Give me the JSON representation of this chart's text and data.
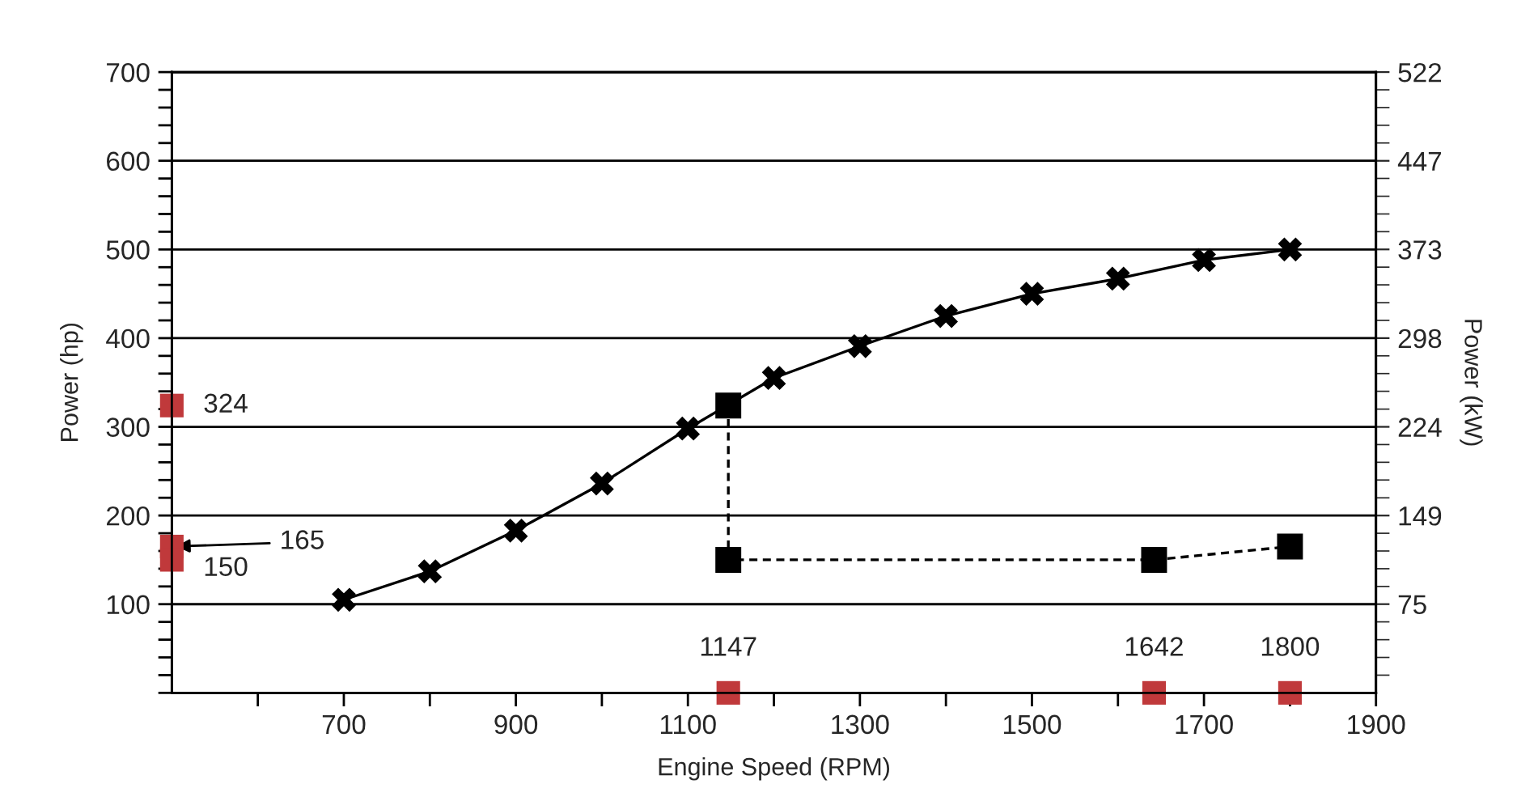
{
  "chart_data": {
    "type": "line",
    "xlabel": "Engine Speed (RPM)",
    "ylabel": "Power (hp)",
    "y2label": "Power (kW)",
    "xlim": [
      500,
      1900
    ],
    "xticks": [
      {
        "value": 600,
        "label": null
      },
      700,
      {
        "value": 800,
        "label": null
      },
      900,
      {
        "value": 1000,
        "label": null
      },
      1100,
      {
        "value": 1200,
        "label": null
      },
      1300,
      {
        "value": 1400,
        "label": null
      },
      1500,
      {
        "value": 1600,
        "label": null
      },
      1700,
      {
        "value": 1800,
        "label": null
      },
      1900
    ],
    "ylim": [
      0,
      700
    ],
    "yticks": [
      {
        "value": 0,
        "label": null
      },
      {
        "value": 20,
        "label": null
      },
      {
        "value": 40,
        "label": null
      },
      {
        "value": 60,
        "label": null
      },
      {
        "value": 80,
        "label": null
      },
      100,
      {
        "value": 120,
        "label": null
      },
      {
        "value": 140,
        "label": null
      },
      {
        "value": 160,
        "label": null
      },
      {
        "value": 180,
        "label": null
      },
      200,
      {
        "value": 220,
        "label": null
      },
      {
        "value": 240,
        "label": null
      },
      {
        "value": 260,
        "label": null
      },
      {
        "value": 280,
        "label": null
      },
      300,
      {
        "value": 320,
        "label": null
      },
      {
        "value": 340,
        "label": null
      },
      {
        "value": 360,
        "label": null
      },
      {
        "value": 380,
        "label": null
      },
      400,
      {
        "value": 420,
        "label": null
      },
      {
        "value": 440,
        "label": null
      },
      {
        "value": 460,
        "label": null
      },
      {
        "value": 480,
        "label": null
      },
      500,
      {
        "value": 520,
        "label": null
      },
      {
        "value": 540,
        "label": null
      },
      {
        "value": 560,
        "label": null
      },
      {
        "value": 580,
        "label": null
      },
      600,
      {
        "value": 620,
        "label": null
      },
      {
        "value": 640,
        "label": null
      },
      {
        "value": 660,
        "label": null
      },
      {
        "value": 680,
        "label": null
      },
      700
    ],
    "y2lim": [
      0,
      522
    ],
    "y2ticks": [
      {
        "value": 14.9,
        "label": null
      },
      {
        "value": 29.8,
        "label": null
      },
      {
        "value": 44.7,
        "label": null
      },
      {
        "value": 59.7,
        "label": null
      },
      {
        "value": 74.6,
        "label": "75"
      },
      {
        "value": 89.5,
        "label": null
      },
      {
        "value": 104.4,
        "label": null
      },
      {
        "value": 119.3,
        "label": null
      },
      {
        "value": 134.2,
        "label": null
      },
      {
        "value": 149.1,
        "label": "149"
      },
      {
        "value": 164.0,
        "label": null
      },
      {
        "value": 179.0,
        "label": null
      },
      {
        "value": 193.9,
        "label": null
      },
      {
        "value": 208.8,
        "label": null
      },
      {
        "value": 223.7,
        "label": "224"
      },
      {
        "value": 238.6,
        "label": null
      },
      {
        "value": 253.6,
        "label": null
      },
      {
        "value": 268.5,
        "label": null
      },
      {
        "value": 283.4,
        "label": null
      },
      {
        "value": 298.3,
        "label": "298"
      },
      {
        "value": 313.2,
        "label": null
      },
      {
        "value": 328.1,
        "label": null
      },
      {
        "value": 343.1,
        "label": null
      },
      {
        "value": 358.0,
        "label": null
      },
      {
        "value": 372.9,
        "label": "373"
      },
      {
        "value": 387.8,
        "label": null
      },
      {
        "value": 402.7,
        "label": null
      },
      {
        "value": 417.6,
        "label": null
      },
      {
        "value": 432.6,
        "label": null
      },
      {
        "value": 447.4,
        "label": "447"
      },
      {
        "value": 462.4,
        "label": null
      },
      {
        "value": 477.3,
        "label": null
      },
      {
        "value": 492.2,
        "label": null
      },
      {
        "value": 507.1,
        "label": null
      },
      {
        "value": 522,
        "label": "522"
      }
    ],
    "grid": "y",
    "series": [
      {
        "color": "#000000",
        "marker": "cross",
        "line_style": "solid",
        "x": [
          700,
          800,
          900,
          1000,
          1100,
          1200,
          1300,
          1400,
          1500,
          1600,
          1700,
          1800
        ],
        "values": [
          105,
          137,
          183,
          236,
          298,
          355,
          391,
          425,
          450,
          467,
          488,
          500
        ]
      },
      {
        "color": "#000000",
        "marker": "square",
        "line_style": "dashed",
        "x": [
          1147,
          1147,
          1642,
          1800
        ],
        "values": [
          324,
          150,
          150,
          165
        ]
      },
      {
        "type": "scatter",
        "color": "#c0393b",
        "marker": "square",
        "x": [
          500,
          500,
          500
        ],
        "values": [
          324,
          165,
          150
        ],
        "value_labels": [
          "324",
          "165",
          "150"
        ]
      },
      {
        "type": "scatter",
        "color": "#c0393b",
        "marker": "square",
        "x": [
          1147,
          1642,
          1800
        ],
        "values": [
          0,
          0,
          0
        ]
      }
    ],
    "annotations": [
      {
        "text": "1147",
        "x": 1147,
        "y": 0
      },
      {
        "text": "1642",
        "x": 1642,
        "y": 0
      },
      {
        "text": "1800",
        "x": 1800,
        "y": 0
      }
    ]
  }
}
